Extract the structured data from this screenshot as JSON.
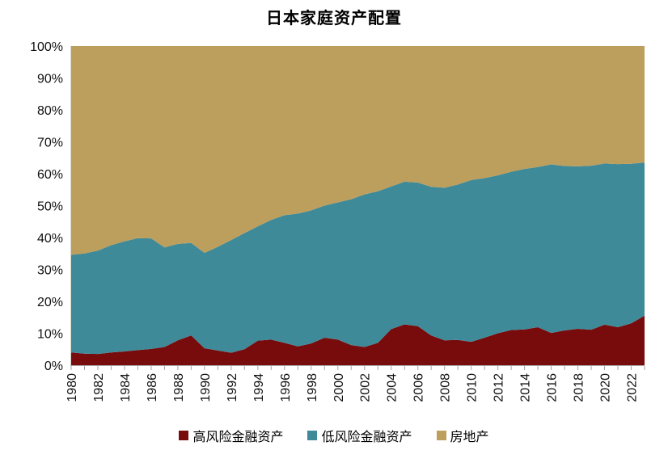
{
  "chart_data": {
    "type": "area",
    "stacked": true,
    "title": "日本家庭资产配置",
    "unit": "%",
    "ylim": [
      0,
      100
    ],
    "grid": false,
    "legend_position": "bottom",
    "x": [
      1980,
      1981,
      1982,
      1983,
      1984,
      1985,
      1986,
      1987,
      1988,
      1989,
      1990,
      1991,
      1992,
      1993,
      1994,
      1995,
      1996,
      1997,
      1998,
      1999,
      2000,
      2001,
      2002,
      2003,
      2004,
      2005,
      2006,
      2007,
      2008,
      2009,
      2010,
      2011,
      2012,
      2013,
      2014,
      2015,
      2016,
      2017,
      2018,
      2019,
      2020,
      2021,
      2022,
      2023
    ],
    "x_axis": {
      "tick_labels": [
        "1980",
        "1982",
        "1984",
        "1986",
        "1988",
        "1990",
        "1992",
        "1994",
        "1996",
        "1998",
        "2000",
        "2002",
        "2004",
        "2006",
        "2008",
        "2010",
        "2012",
        "2014",
        "2016",
        "2018",
        "2020",
        "2022"
      ]
    },
    "y_axis": {
      "tick_labels": [
        "0%",
        "10%",
        "20%",
        "30%",
        "40%",
        "50%",
        "60%",
        "70%",
        "80%",
        "90%",
        "100%"
      ],
      "tick_values": [
        0,
        10,
        20,
        30,
        40,
        50,
        60,
        70,
        80,
        90,
        100
      ]
    },
    "series": [
      {
        "id": "high-risk-financial-assets",
        "name": "高风险金融资产",
        "color": "#780C0C",
        "values": [
          4.0,
          3.6,
          3.5,
          4.0,
          4.3,
          4.7,
          5.1,
          5.7,
          7.8,
          9.3,
          5.3,
          4.6,
          3.9,
          5.0,
          7.7,
          8.0,
          7.0,
          5.9,
          6.8,
          8.6,
          8.0,
          6.3,
          5.7,
          7.0,
          11.3,
          12.8,
          12.2,
          9.3,
          7.8,
          7.9,
          7.3,
          8.6,
          10.0,
          11.0,
          11.2,
          11.9,
          10.1,
          10.9,
          11.4,
          11.1,
          12.7,
          11.9,
          13.1,
          15.5
        ]
      },
      {
        "id": "low-risk-financial-assets",
        "name": "低风险金融资产",
        "color": "#3E8A99",
        "values": [
          30.6,
          31.4,
          32.4,
          33.6,
          34.5,
          35.1,
          34.6,
          31.2,
          30.2,
          29.0,
          29.9,
          32.5,
          35.3,
          36.4,
          35.8,
          37.5,
          40.0,
          41.6,
          41.7,
          41.4,
          43.0,
          45.7,
          47.8,
          47.5,
          44.7,
          44.7,
          45.0,
          46.6,
          47.8,
          48.7,
          50.7,
          50.0,
          49.5,
          49.6,
          50.3,
          50.2,
          52.8,
          51.5,
          50.9,
          51.4,
          50.5,
          51.1,
          50.0,
          48.0
        ]
      },
      {
        "id": "real-estate",
        "name": "房地产",
        "color": "#BC9E5D",
        "values": [
          65.4,
          65.0,
          64.1,
          62.4,
          61.2,
          60.2,
          60.3,
          63.1,
          62.0,
          61.7,
          64.8,
          62.9,
          60.8,
          58.6,
          56.5,
          54.5,
          53.0,
          52.5,
          51.5,
          50.0,
          49.0,
          48.0,
          46.5,
          45.5,
          44.0,
          42.5,
          42.8,
          44.1,
          44.4,
          43.4,
          42.0,
          41.4,
          40.5,
          39.4,
          38.5,
          37.9,
          37.1,
          37.6,
          37.7,
          37.5,
          36.8,
          37.0,
          36.9,
          36.5
        ]
      }
    ],
    "axis_color": "#A6A6A6"
  }
}
